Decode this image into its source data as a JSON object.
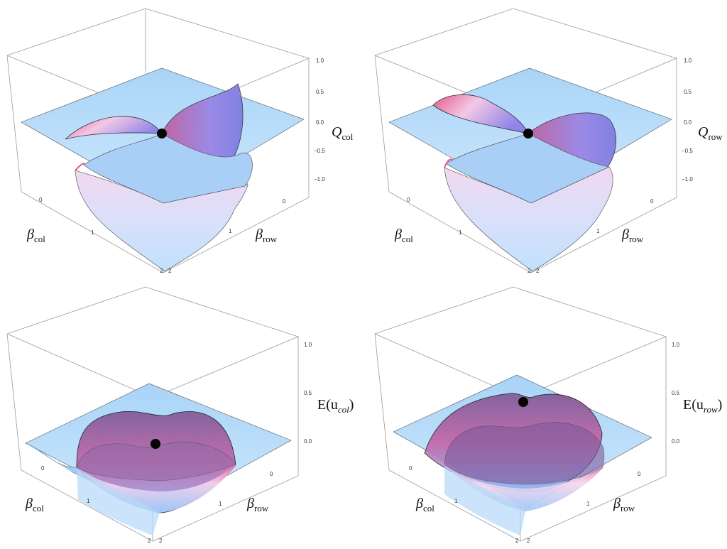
{
  "chart_data": [
    {
      "type": "surface3d",
      "zlabel": {
        "main": "Q",
        "sub": "col",
        "italic": true
      },
      "xlabel": {
        "main": "β",
        "sub": "col"
      },
      "ylabel": {
        "main": "β",
        "sub": "row"
      },
      "z_ticks": [
        "1.0",
        "0.5",
        "0.0",
        "−0.5",
        "−1.0"
      ],
      "x_ticks": [
        "0",
        "1",
        "2"
      ],
      "y_ticks": [
        "2",
        "1",
        "0"
      ],
      "zlim": [
        -1,
        1
      ],
      "surface_colors": {
        "plane": "#bfe1fb",
        "front_fold": "#c86ab0",
        "back_fold": "#8a8fe6"
      },
      "marker": {
        "x": 1,
        "y": 1,
        "z": 0
      }
    },
    {
      "type": "surface3d",
      "zlabel": {
        "main": "Q",
        "sub": "row",
        "italic": true
      },
      "xlabel": {
        "main": "β",
        "sub": "col"
      },
      "ylabel": {
        "main": "β",
        "sub": "row"
      },
      "z_ticks": [
        "1.0",
        "0.5",
        "0.0",
        "−0.5",
        "−1.0"
      ],
      "x_ticks": [
        "0",
        "1",
        "2"
      ],
      "y_ticks": [
        "2",
        "1",
        "0"
      ],
      "zlim": [
        -1,
        1
      ],
      "surface_colors": {
        "plane": "#bfe1fb",
        "front_fold": "#c86ab0",
        "back_fold": "#8a8fe6"
      },
      "marker": {
        "x": 1,
        "y": 1,
        "z": 0
      }
    },
    {
      "type": "surface3d",
      "zlabel": {
        "main": "E(u",
        "sub": "col",
        "tail": ")",
        "italic": false
      },
      "xlabel": {
        "main": "β",
        "sub": "col"
      },
      "ylabel": {
        "main": "β",
        "sub": "row"
      },
      "z_ticks": [
        "1.0",
        "0.5",
        "0.0"
      ],
      "x_ticks": [
        "0",
        "1",
        "2"
      ],
      "y_ticks": [
        "2",
        "1",
        "0"
      ],
      "zlim": [
        0,
        1
      ],
      "surface_colors": {
        "plane": "#bfe1fb",
        "front_fold": "#9a5aa8",
        "back_fold": "#7b7ad6"
      },
      "marker": {
        "x": 1,
        "y": 1,
        "z": 0.1
      }
    },
    {
      "type": "surface3d",
      "zlabel": {
        "main": "E(u",
        "sub": "row",
        "tail": ")",
        "italic": false
      },
      "xlabel": {
        "main": "β",
        "sub": "col"
      },
      "ylabel": {
        "main": "β",
        "sub": "row"
      },
      "z_ticks": [
        "1.0",
        "0.5",
        "0.0"
      ],
      "x_ticks": [
        "0",
        "1",
        "2"
      ],
      "y_ticks": [
        "2",
        "1",
        "0"
      ],
      "zlim": [
        0,
        1
      ],
      "surface_colors": {
        "plane": "#bfe1fb",
        "front_fold": "#9a5aa8",
        "back_fold": "#7b7ad6"
      },
      "marker": {
        "x": 1,
        "y": 1,
        "z": 0.35
      }
    }
  ]
}
